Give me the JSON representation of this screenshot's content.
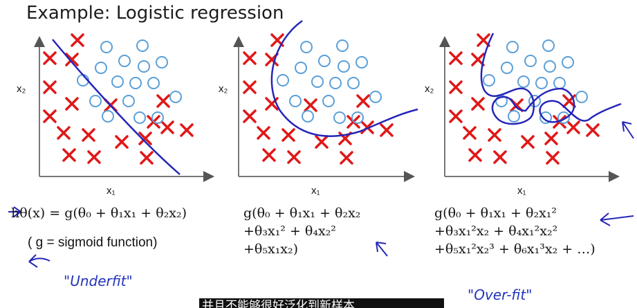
{
  "title": "Example: Logistic regression",
  "panels": [
    {
      "x_label": "x₁",
      "y_label": "x₂",
      "formula_lines": [
        "hθ(x) = g(θ₀ + θ₁x₁ + θ₂x₂)"
      ],
      "note": "( g = sigmoid function)",
      "annotation": "\"Underfit\""
    },
    {
      "x_label": "x₁",
      "y_label": "x₂",
      "formula_lines": [
        "g(θ₀ + θ₁x₁ + θ₂x₂",
        "+θ₃x₁² + θ₄x₂²",
        "+θ₅x₁x₂)"
      ]
    },
    {
      "x_label": "x₁",
      "y_label": "x₂",
      "formula_lines": [
        "g(θ₀ + θ₁x₁ + θ₂x₁²",
        "+θ₃x₁²x₂ + θ₄x₁²x₂²",
        "+θ₅x₁²x₂³ + θ₆x₁³x₂ + …)"
      ],
      "annotation": "\"Over-fit\""
    }
  ],
  "subtitle": "并且不能够很好泛化到新样本",
  "colors": {
    "cross": "#e01818",
    "circle": "#5a9fd8",
    "ink": "#2525b8",
    "axis": "#777777"
  }
}
